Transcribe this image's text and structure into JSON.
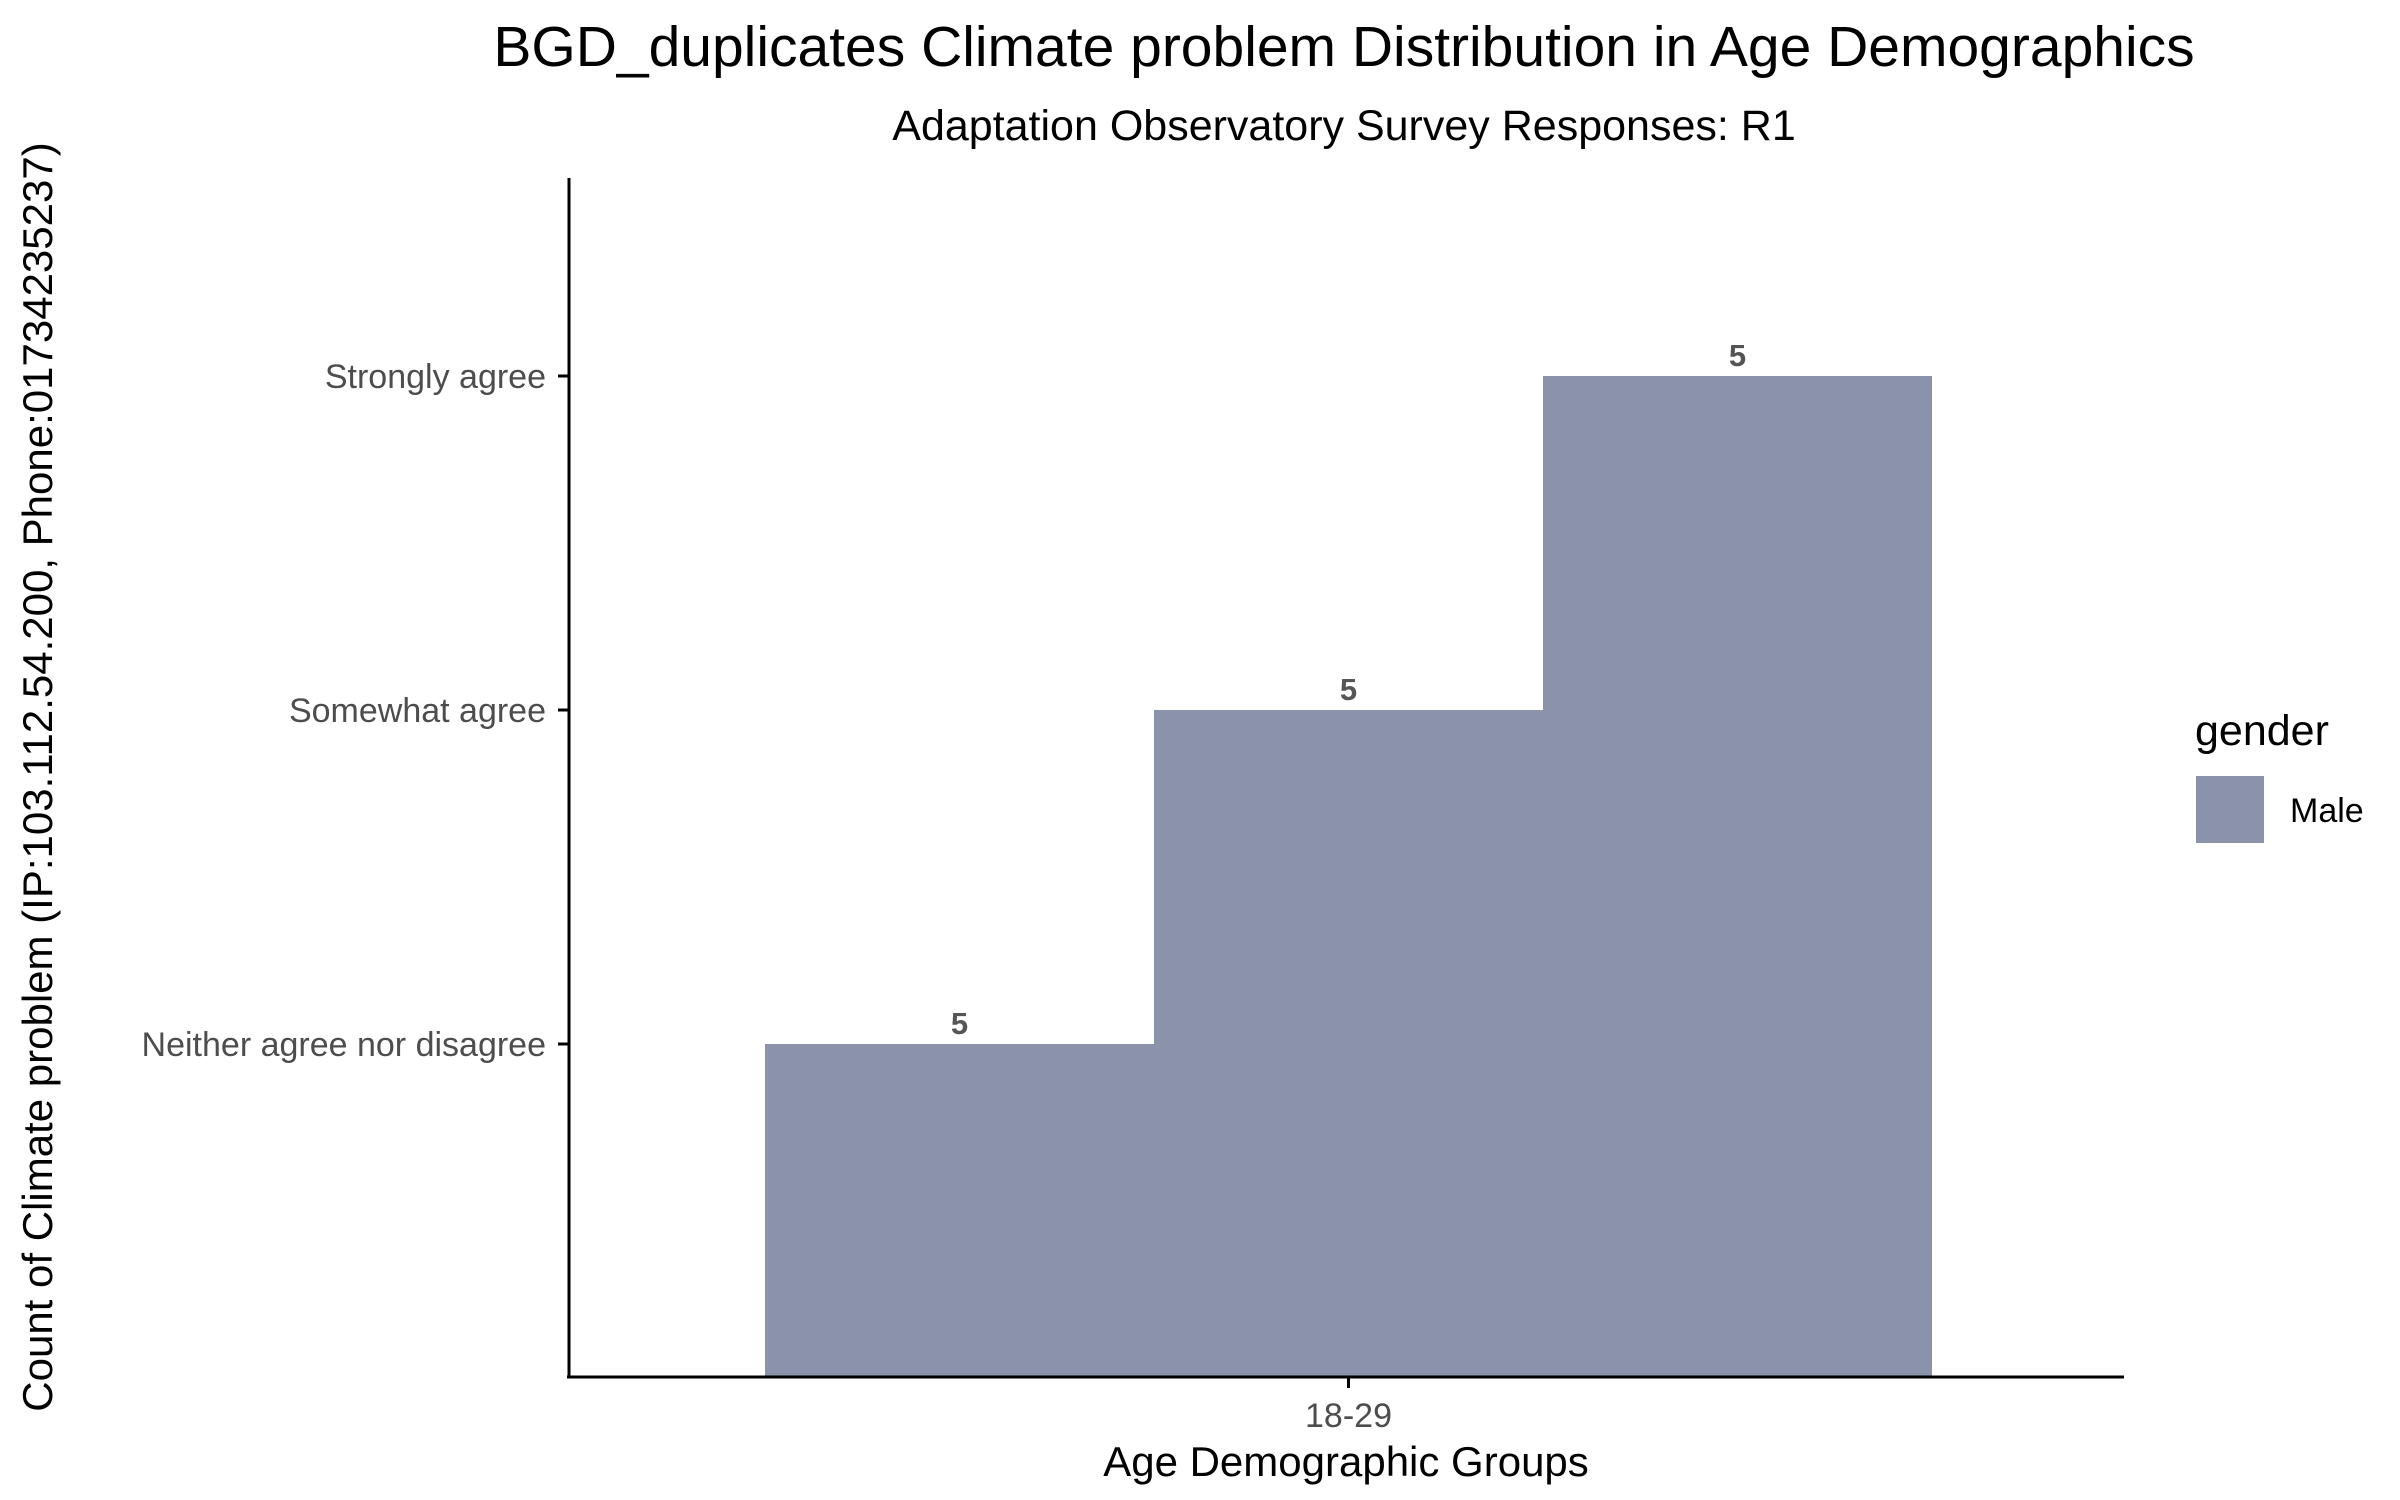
{
  "chart_data": {
    "type": "bar",
    "title": "BGD_duplicates Climate problem Distribution in Age Demographics",
    "subtitle": "Adaptation Observatory Survey Responses: R1",
    "xlabel": "Age Demographic Groups",
    "ylabel": "Count of Climate problem (IP:103.112.54.200, Phone:01734235237)",
    "categories": [
      "18-29"
    ],
    "y_levels": [
      "Neither agree nor disagree",
      "Somewhat agree",
      "Strongly agree"
    ],
    "bars": [
      {
        "category": "18-29",
        "response": "Neither agree nor disagree",
        "label": "5"
      },
      {
        "category": "18-29",
        "response": "Somewhat agree",
        "label": "5"
      },
      {
        "category": "18-29",
        "response": "Strongly agree",
        "label": "5"
      }
    ],
    "legend": {
      "title": "gender",
      "position": "right",
      "items": [
        {
          "label": "Male",
          "color": "#8b93ab"
        }
      ]
    },
    "grid": false,
    "bar_color": "#8b93ab"
  }
}
